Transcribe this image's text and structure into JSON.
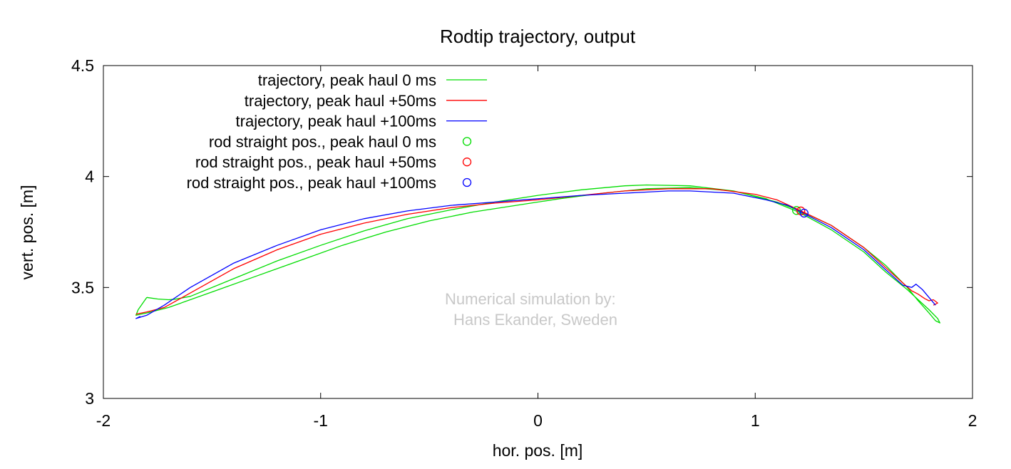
{
  "chart_data": {
    "type": "line",
    "title": "Rodtip trajectory, output",
    "xlabel": "hor. pos. [m]",
    "ylabel": "vert. pos. [m]",
    "xlim": [
      -2,
      2
    ],
    "ylim": [
      3,
      4.5
    ],
    "x_ticks": [
      -2,
      -1,
      0,
      1,
      2
    ],
    "x_tick_labels": [
      "-2",
      "-1",
      "0",
      "1",
      "2"
    ],
    "y_ticks": [
      3,
      3.5,
      4,
      4.5
    ],
    "y_tick_labels": [
      "3",
      "3.5",
      "4",
      "4.5"
    ],
    "grid": false,
    "legend_position": "top-left",
    "annotation": [
      "Numerical simulation by:",
      "Hans Ekander, Sweden"
    ],
    "series": [
      {
        "name": "trajectory, peak haul 0 ms",
        "kind": "line",
        "color": "#00dd00",
        "x": [
          -1.8,
          -1.75,
          -1.7,
          -1.67,
          -1.6,
          -1.4,
          -1.2,
          -1.0,
          -0.8,
          -0.6,
          -0.4,
          -0.2,
          0.0,
          0.2,
          0.4,
          0.5,
          0.7,
          0.9,
          1.1,
          1.2,
          1.35,
          1.5,
          1.6,
          1.7,
          1.75,
          1.8,
          1.83,
          1.85,
          1.84,
          1.8,
          1.75,
          1.7,
          1.6,
          1.5,
          1.35,
          1.2,
          1.05,
          0.9,
          0.7,
          0.5,
          0.3,
          0.1,
          -0.1,
          -0.3,
          -0.5,
          -0.7,
          -0.9,
          -1.1,
          -1.3,
          -1.5,
          -1.7,
          -1.8,
          -1.85,
          -1.84,
          -1.8
        ],
        "y": [
          3.455,
          3.448,
          3.445,
          3.447,
          3.46,
          3.54,
          3.62,
          3.69,
          3.755,
          3.81,
          3.85,
          3.885,
          3.915,
          3.94,
          3.958,
          3.962,
          3.958,
          3.935,
          3.885,
          3.848,
          3.78,
          3.68,
          3.6,
          3.5,
          3.44,
          3.385,
          3.35,
          3.34,
          3.36,
          3.4,
          3.445,
          3.49,
          3.57,
          3.66,
          3.76,
          3.84,
          3.9,
          3.935,
          3.95,
          3.945,
          3.925,
          3.9,
          3.87,
          3.84,
          3.8,
          3.75,
          3.69,
          3.62,
          3.55,
          3.48,
          3.41,
          3.385,
          3.375,
          3.4,
          3.455
        ]
      },
      {
        "name": "trajectory, peak haul +50ms",
        "kind": "line",
        "color": "#ff0000",
        "x": [
          -1.85,
          -1.8,
          -1.72,
          -1.6,
          -1.4,
          -1.2,
          -1.0,
          -0.8,
          -0.6,
          -0.4,
          -0.2,
          0.0,
          0.2,
          0.4,
          0.6,
          0.8,
          1.0,
          1.1,
          1.2,
          1.35,
          1.5,
          1.6,
          1.68,
          1.72,
          1.75,
          1.78,
          1.8,
          1.82,
          1.84,
          1.82
        ],
        "y": [
          3.38,
          3.39,
          3.41,
          3.475,
          3.585,
          3.67,
          3.74,
          3.79,
          3.83,
          3.86,
          3.88,
          3.895,
          3.915,
          3.935,
          3.945,
          3.945,
          3.92,
          3.895,
          3.85,
          3.78,
          3.68,
          3.59,
          3.52,
          3.485,
          3.47,
          3.45,
          3.44,
          3.445,
          3.43,
          3.42
        ]
      },
      {
        "name": "trajectory, peak haul +100ms",
        "kind": "line",
        "color": "#0000ff",
        "x": [
          -1.83,
          -1.85,
          -1.8,
          -1.72,
          -1.6,
          -1.4,
          -1.2,
          -1.0,
          -0.8,
          -0.6,
          -0.4,
          -0.2,
          0.0,
          0.2,
          0.4,
          0.6,
          0.7,
          0.9,
          1.05,
          1.15,
          1.22,
          1.35,
          1.5,
          1.6,
          1.68,
          1.72,
          1.74,
          1.77,
          1.8,
          1.83
        ],
        "y": [
          3.37,
          3.36,
          3.375,
          3.42,
          3.5,
          3.61,
          3.69,
          3.76,
          3.81,
          3.845,
          3.87,
          3.885,
          3.9,
          3.915,
          3.925,
          3.935,
          3.935,
          3.925,
          3.895,
          3.87,
          3.835,
          3.77,
          3.67,
          3.58,
          3.51,
          3.5,
          3.515,
          3.49,
          3.455,
          3.42
        ]
      },
      {
        "name": "rod straight pos., peak haul 0 ms",
        "kind": "point",
        "color": "#00dd00",
        "x": [
          1.19
        ],
        "y": [
          3.847
        ]
      },
      {
        "name": "rod straight pos., peak haul +50ms",
        "kind": "point",
        "color": "#ff0000",
        "x": [
          1.21
        ],
        "y": [
          3.845
        ]
      },
      {
        "name": "rod straight pos., peak haul +100ms",
        "kind": "point",
        "color": "#0000ff",
        "x": [
          1.225
        ],
        "y": [
          3.835
        ]
      }
    ]
  }
}
